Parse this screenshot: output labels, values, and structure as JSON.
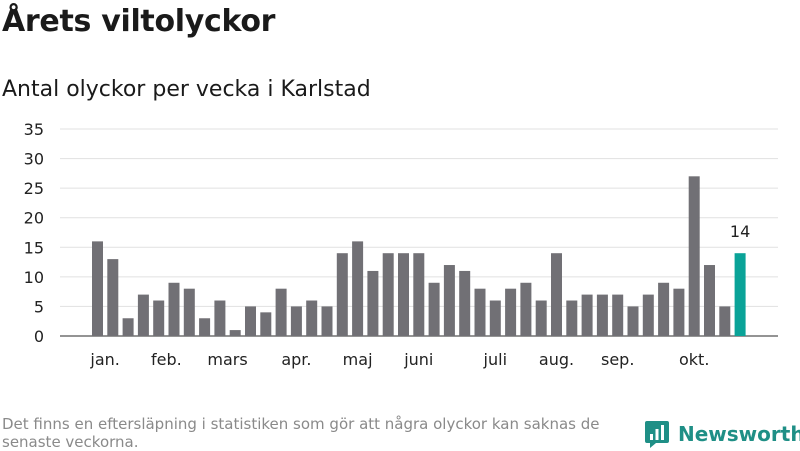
{
  "title": "Årets viltolyckor",
  "subtitle": "Antal olyckor per vecka i Karlstad",
  "footnote": "Det finns en eftersläpning i statistiken som gör att några olyckor kan saknas de senaste veckorna.",
  "brand": {
    "name": "Newsworthy",
    "icon": "newsworthy-logo-icon",
    "color": "#1f8f86"
  },
  "chart_data": {
    "type": "bar",
    "title": "",
    "xlabel": "",
    "ylabel": "",
    "ylim": [
      0,
      35
    ],
    "yticks": [
      0,
      5,
      10,
      15,
      20,
      25,
      30,
      35
    ],
    "grid": true,
    "bar_color": "#717075",
    "highlight_color": "#0aa398",
    "x": [
      1,
      2,
      3,
      4,
      5,
      6,
      7,
      8,
      9,
      10,
      11,
      12,
      13,
      14,
      15,
      16,
      17,
      18,
      19,
      20,
      21,
      22,
      23,
      24,
      25,
      26,
      27,
      28,
      29,
      30,
      31,
      32,
      33,
      34,
      35,
      36,
      37,
      38,
      39,
      40,
      41,
      42,
      43
    ],
    "values": [
      16,
      13,
      3,
      7,
      6,
      9,
      8,
      3,
      6,
      1,
      5,
      4,
      8,
      5,
      6,
      5,
      14,
      16,
      11,
      14,
      14,
      14,
      9,
      12,
      11,
      8,
      6,
      8,
      9,
      6,
      14,
      6,
      7,
      7,
      7,
      5,
      7,
      9,
      8,
      27,
      12,
      5,
      14
    ],
    "highlight_index": 42,
    "data_labels": [
      {
        "index": 42,
        "text": "14"
      }
    ],
    "month_labels": [
      {
        "label": "jan.",
        "week": 1.5
      },
      {
        "label": "feb.",
        "week": 5.5
      },
      {
        "label": "mars",
        "week": 9.5
      },
      {
        "label": "apr.",
        "week": 14
      },
      {
        "label": "maj",
        "week": 18
      },
      {
        "label": "juni",
        "week": 22
      },
      {
        "label": "juli",
        "week": 27
      },
      {
        "label": "aug.",
        "week": 31
      },
      {
        "label": "sep.",
        "week": 35
      },
      {
        "label": "okt.",
        "week": 40
      }
    ]
  }
}
